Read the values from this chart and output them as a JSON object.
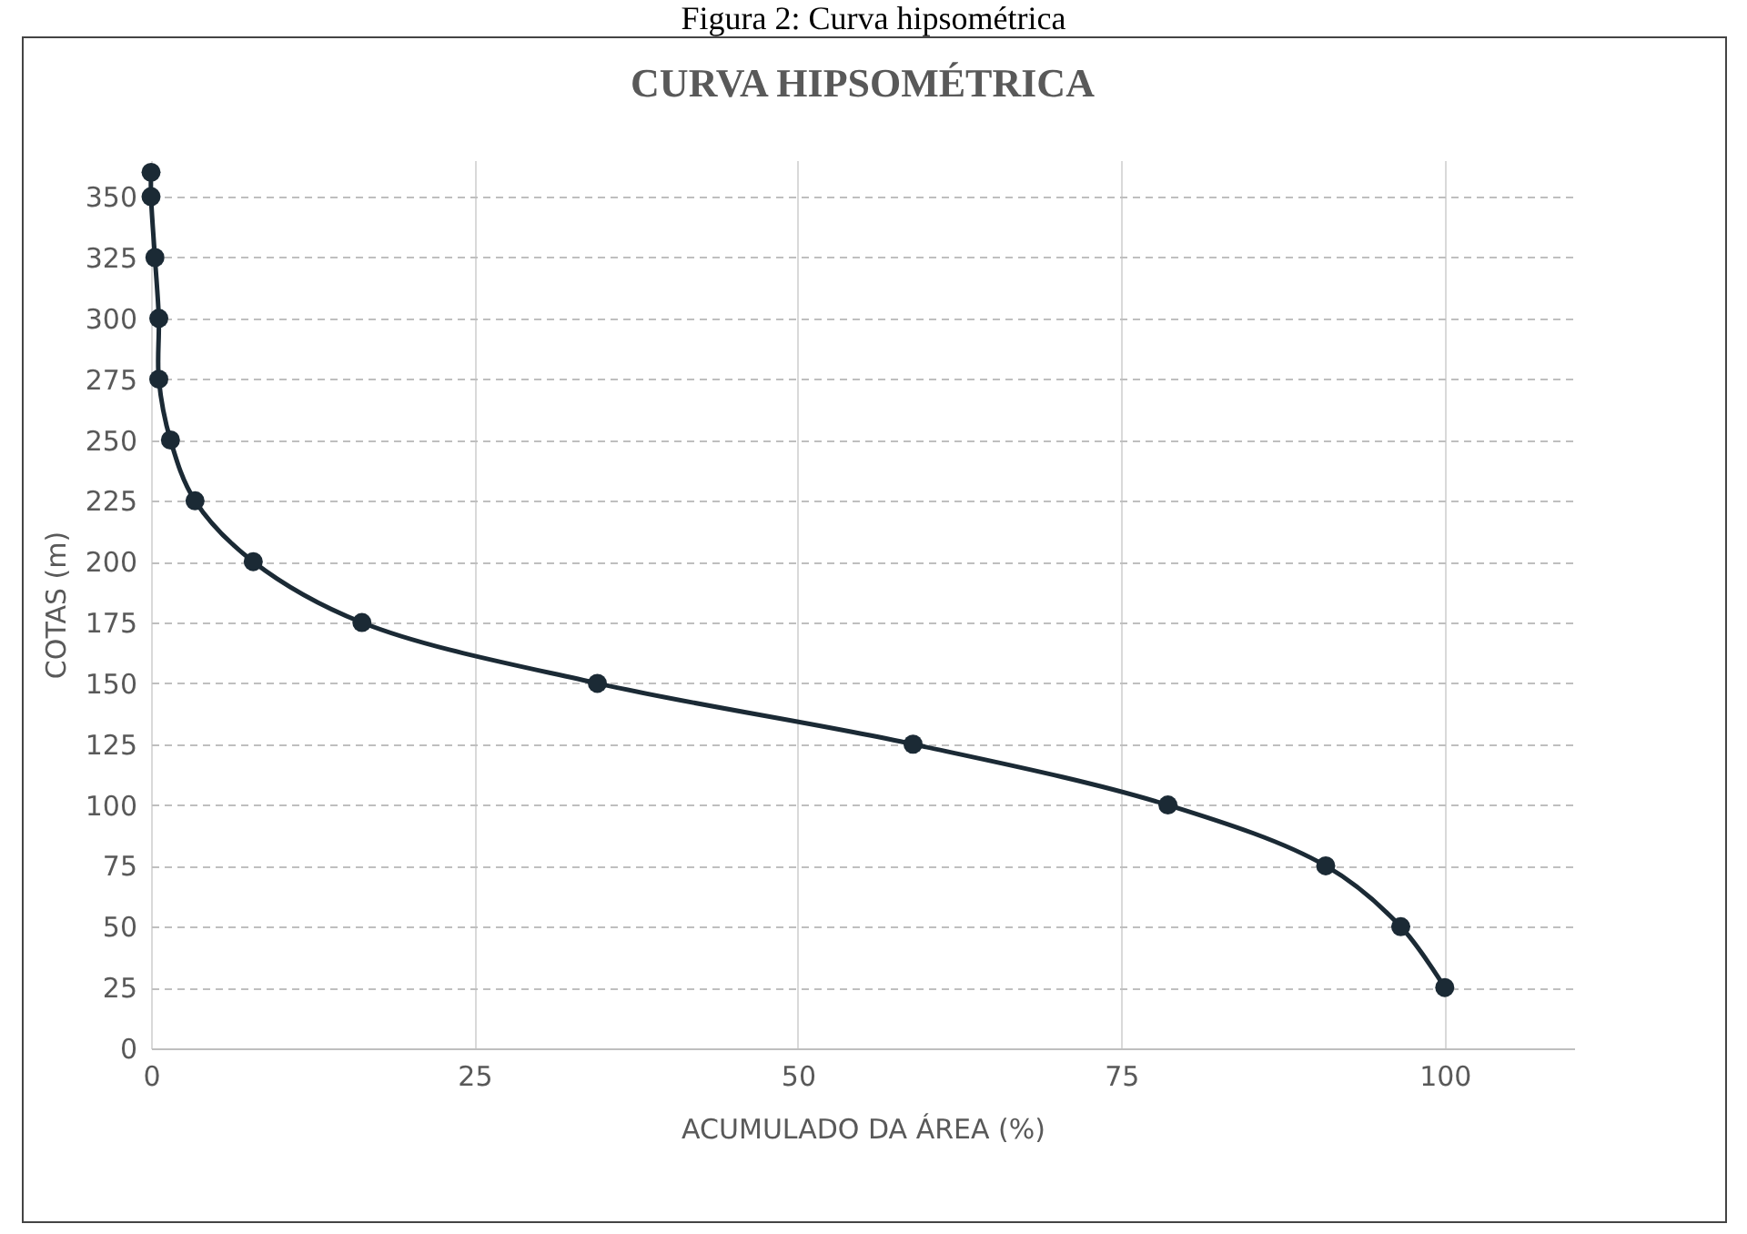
{
  "chart_data": {
    "type": "line",
    "title": "CURVA HIPSOMÉTRICA",
    "xlabel": "ACUMULADO DA ÁREA (%)",
    "ylabel": "COTAS (m)",
    "annotations": [
      "Figura 2: Curva hipsométrica"
    ],
    "series": [
      {
        "color": "#1b2a35",
        "x": [
          0,
          0,
          0.3,
          0.6,
          0.6,
          1.5,
          3.4,
          7.9,
          16.3,
          34.5,
          58.9,
          78.6,
          90.8,
          96.6,
          100
        ],
        "values": [
          360,
          350,
          325,
          300,
          275,
          250,
          225,
          200,
          175,
          150,
          125,
          100,
          75,
          50,
          25
        ]
      }
    ],
    "xlim": [
      0,
      110
    ],
    "xticks": [
      0,
      25,
      50,
      75,
      100
    ],
    "ylim": [
      0,
      365
    ],
    "yticks": [
      0,
      25,
      50,
      75,
      100,
      125,
      150,
      175,
      200,
      225,
      250,
      275,
      300,
      325,
      350
    ],
    "grid": true,
    "marker": "circle",
    "line_style": "solid",
    "legend": false
  }
}
